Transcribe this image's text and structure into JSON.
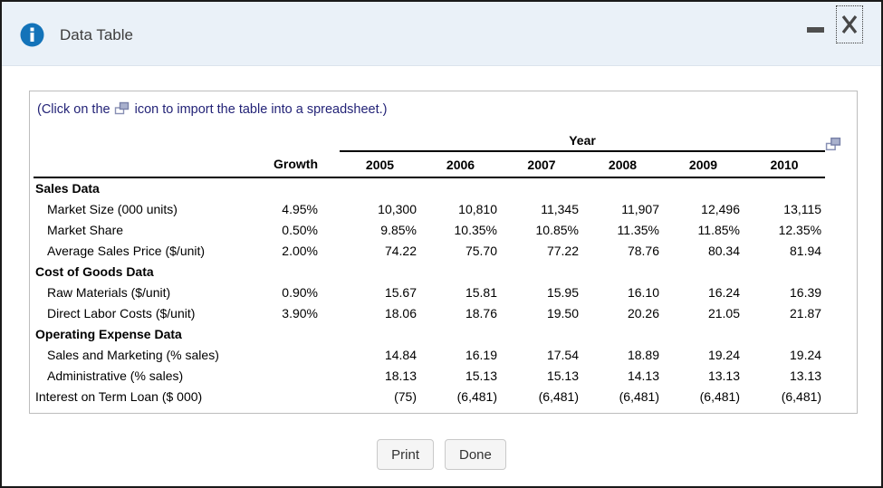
{
  "window": {
    "title": "Data Table"
  },
  "icons": {
    "titlebar": "info-icon",
    "minimize": "minimize-icon",
    "close": "close-icon",
    "import": "import-table-icon"
  },
  "colors": {
    "titlebar_bg": "#eaf1f8",
    "info_blue": "#1373b9",
    "instruction_text": "#232377",
    "dialog_border": "#1a1a1a",
    "table_rule": "#000000"
  },
  "instruction": {
    "before": "(Click on the",
    "after": "icon to import the table into a spreadsheet.)"
  },
  "table": {
    "year_header": "Year",
    "growth_header": "Growth",
    "years": [
      "2005",
      "2006",
      "2007",
      "2008",
      "2009",
      "2010"
    ],
    "sections": [
      {
        "header": "Sales Data",
        "rows": [
          {
            "label": "Market Size (000 units)",
            "indent": true,
            "growth": "4.95%",
            "values": [
              "10,300",
              "10,810",
              "11,345",
              "11,907",
              "12,496",
              "13,115"
            ]
          },
          {
            "label": "Market Share",
            "indent": true,
            "growth": "0.50%",
            "values": [
              "9.85%",
              "10.35%",
              "10.85%",
              "11.35%",
              "11.85%",
              "12.35%"
            ]
          },
          {
            "label": "Average Sales Price ($/unit)",
            "indent": true,
            "growth": "2.00%",
            "values": [
              "74.22",
              "75.70",
              "77.22",
              "78.76",
              "80.34",
              "81.94"
            ]
          }
        ]
      },
      {
        "header": "Cost of Goods Data",
        "rows": [
          {
            "label": "Raw Materials ($/unit)",
            "indent": true,
            "growth": "0.90%",
            "values": [
              "15.67",
              "15.81",
              "15.95",
              "16.10",
              "16.24",
              "16.39"
            ]
          },
          {
            "label": "Direct Labor Costs ($/unit)",
            "indent": true,
            "growth": "3.90%",
            "values": [
              "18.06",
              "18.76",
              "19.50",
              "20.26",
              "21.05",
              "21.87"
            ]
          }
        ]
      },
      {
        "header": "Operating Expense Data",
        "rows": [
          {
            "label": "Sales and Marketing (% sales)",
            "indent": true,
            "growth": "",
            "values": [
              "14.84",
              "16.19",
              "17.54",
              "18.89",
              "19.24",
              "19.24"
            ]
          },
          {
            "label": "Administrative (% sales)",
            "indent": true,
            "growth": "",
            "values": [
              "18.13",
              "15.13",
              "15.13",
              "14.13",
              "13.13",
              "13.13"
            ]
          },
          {
            "label": "Interest on Term Loan ($ 000)",
            "indent": false,
            "growth": "",
            "values": [
              "(75)",
              "(6,481)",
              "(6,481)",
              "(6,481)",
              "(6,481)",
              "(6,481)"
            ]
          }
        ]
      }
    ]
  },
  "buttons": {
    "print": "Print",
    "done": "Done"
  }
}
